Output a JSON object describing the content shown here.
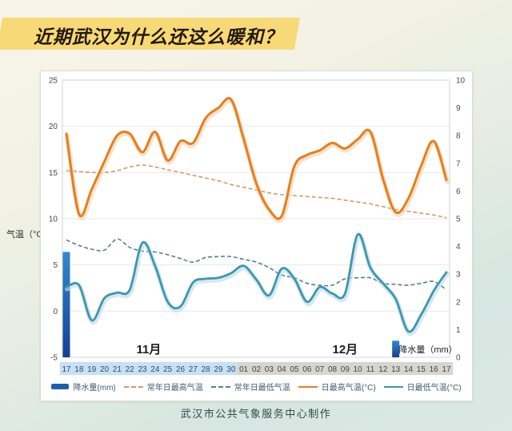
{
  "banner": {
    "title": "近期武汉为什么还这么暖和？"
  },
  "footer": {
    "credit": "武汉市公共气象服务中心制作"
  },
  "chart_data": {
    "type": "line",
    "title": "近期武汉为什么还这么暖和？",
    "x_dates": [
      "17",
      "18",
      "19",
      "20",
      "21",
      "22",
      "23",
      "24",
      "25",
      "26",
      "27",
      "28",
      "29",
      "30",
      "01",
      "02",
      "03",
      "04",
      "05",
      "06",
      "07",
      "08",
      "09",
      "10",
      "11",
      "12",
      "13",
      "14",
      "15",
      "16",
      "17"
    ],
    "month_groups": [
      {
        "label": "11月",
        "start_index": 0,
        "count": 14,
        "strip_color": "#c9dff4",
        "text_color": "#2a516f"
      },
      {
        "label": "12月",
        "start_index": 14,
        "count": 17,
        "strip_color": "#d6d6d1",
        "text_color": "#45453f"
      }
    ],
    "left_axis": {
      "label": "气温（°C）",
      "min": -5,
      "max": 25,
      "step": 5
    },
    "right_axis": {
      "label": "降水量（mm）",
      "min": 0,
      "max": 10,
      "step": 1
    },
    "grid": true,
    "legend_position": "bottom",
    "series": [
      {
        "name": "降水量(mm)",
        "kind": "bar",
        "axis": "right",
        "color_top": "#3189cd",
        "color_bottom": "#173e95",
        "swatch_color": "#1d5fae",
        "values": [
          3.8,
          null,
          null,
          null,
          null,
          null,
          null,
          null,
          null,
          null,
          null,
          null,
          null,
          null,
          null,
          null,
          null,
          null,
          null,
          null,
          null,
          null,
          null,
          null,
          null,
          null,
          0.6,
          null,
          null,
          null,
          null
        ]
      },
      {
        "name": "常年日最高气温",
        "kind": "line",
        "style": "dashed",
        "axis": "left",
        "color": "#d79a66",
        "values": [
          15.2,
          15.1,
          15.0,
          15.0,
          15.2,
          15.6,
          15.8,
          15.6,
          15.3,
          15.0,
          14.7,
          14.4,
          14.1,
          13.7,
          13.4,
          13.1,
          12.8,
          12.6,
          12.5,
          12.4,
          12.3,
          12.2,
          12.0,
          11.8,
          11.6,
          11.3,
          11.0,
          10.8,
          10.6,
          10.4,
          10.1
        ]
      },
      {
        "name": "常年日最低气温",
        "kind": "line",
        "style": "dashed",
        "axis": "left",
        "color": "#5c7d8b",
        "values": [
          7.7,
          7.1,
          6.7,
          6.6,
          7.8,
          6.9,
          6.5,
          6.4,
          6.1,
          5.7,
          5.3,
          5.8,
          5.9,
          5.9,
          5.6,
          5.3,
          4.7,
          3.9,
          3.6,
          3.0,
          2.8,
          2.8,
          3.5,
          3.6,
          3.6,
          3.0,
          2.9,
          2.8,
          3.0,
          3.2,
          2.3
        ]
      },
      {
        "name": "日最高气温(°C)",
        "kind": "line",
        "style": "solid",
        "axis": "left",
        "color": "#e57f1f",
        "halo": "#f4d2ae",
        "values": [
          19.2,
          10.5,
          13.2,
          16.2,
          19.0,
          19.2,
          17.2,
          19.4,
          16.3,
          18.4,
          18.2,
          20.9,
          22.0,
          22.9,
          18.6,
          13.8,
          11.0,
          10.3,
          15.7,
          16.9,
          17.4,
          18.2,
          17.6,
          18.6,
          19.4,
          14.3,
          10.7,
          12.2,
          15.7,
          18.4,
          14.2
        ]
      },
      {
        "name": "日最低气温(°C)",
        "kind": "line",
        "style": "solid",
        "axis": "left",
        "color": "#3e97ad",
        "halo": "#bedbeb",
        "values": [
          2.6,
          2.8,
          -1.0,
          1.4,
          2.0,
          2.3,
          7.4,
          4.9,
          1.0,
          0.5,
          3.1,
          3.5,
          3.6,
          4.1,
          4.9,
          3.4,
          1.7,
          4.6,
          3.5,
          1.0,
          2.6,
          1.9,
          1.9,
          8.3,
          4.7,
          3.0,
          1.3,
          -2.2,
          -0.4,
          2.2,
          4.2
        ]
      }
    ]
  }
}
